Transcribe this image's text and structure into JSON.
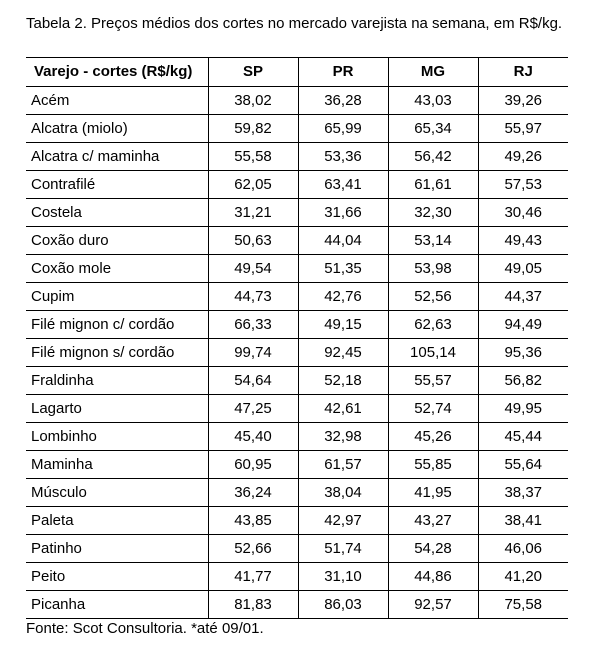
{
  "caption": "Tabela 2. Preços médios dos cortes no mercado varejista na semana, em R$/kg.",
  "table": {
    "headers": [
      "Varejo - cortes (R$/kg)",
      "SP",
      "PR",
      "MG",
      "RJ"
    ],
    "rows": [
      [
        "Acém",
        "38,02",
        "36,28",
        "43,03",
        "39,26"
      ],
      [
        "Alcatra (miolo)",
        "59,82",
        "65,99",
        "65,34",
        "55,97"
      ],
      [
        "Alcatra c/ maminha",
        "55,58",
        "53,36",
        "56,42",
        "49,26"
      ],
      [
        "Contrafilé",
        "62,05",
        "63,41",
        "61,61",
        "57,53"
      ],
      [
        "Costela",
        "31,21",
        "31,66",
        "32,30",
        "30,46"
      ],
      [
        "Coxão duro",
        "50,63",
        "44,04",
        "53,14",
        "49,43"
      ],
      [
        "Coxão mole",
        "49,54",
        "51,35",
        "53,98",
        "49,05"
      ],
      [
        "Cupim",
        "44,73",
        "42,76",
        "52,56",
        "44,37"
      ],
      [
        "Filé mignon c/ cordão",
        "66,33",
        "49,15",
        "62,63",
        "94,49"
      ],
      [
        "Filé mignon s/ cordão",
        "99,74",
        "92,45",
        "105,14",
        "95,36"
      ],
      [
        "Fraldinha",
        "54,64",
        "52,18",
        "55,57",
        "56,82"
      ],
      [
        "Lagarto",
        "47,25",
        "42,61",
        "52,74",
        "49,95"
      ],
      [
        "Lombinho",
        "45,40",
        "32,98",
        "45,26",
        "45,44"
      ],
      [
        "Maminha",
        "60,95",
        "61,57",
        "55,85",
        "55,64"
      ],
      [
        "Músculo",
        "36,24",
        "38,04",
        "41,95",
        "38,37"
      ],
      [
        "Paleta",
        "43,85",
        "42,97",
        "43,27",
        "38,41"
      ],
      [
        "Patinho",
        "52,66",
        "51,74",
        "54,28",
        "46,06"
      ],
      [
        "Peito",
        "41,77",
        "31,10",
        "44,86",
        "41,20"
      ],
      [
        "Picanha",
        "81,83",
        "86,03",
        "92,57",
        "75,58"
      ]
    ]
  },
  "footnote": "Fonte: Scot Consultoria. *até 09/01."
}
